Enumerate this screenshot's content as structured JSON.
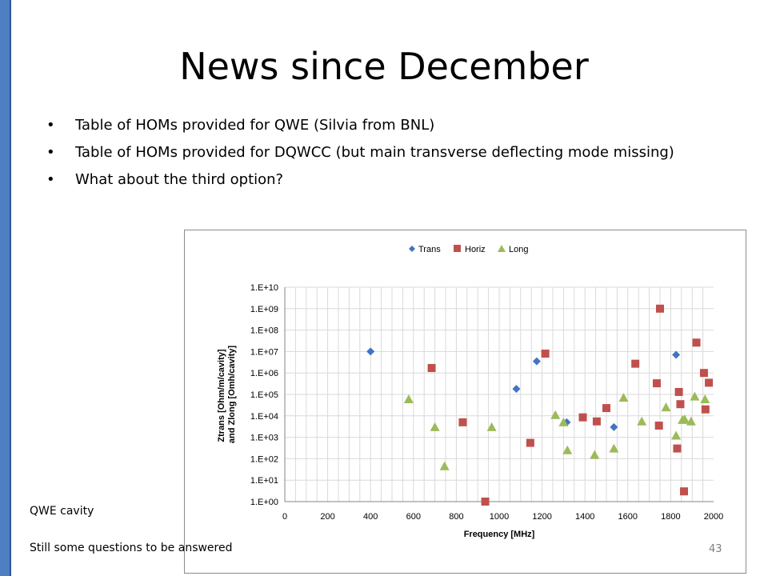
{
  "slide": {
    "title": "News since December",
    "bullets": [
      "Table of HOMs provided for QWE (Silvia from BNL)",
      "Table of HOMs provided for DQWCC (but main transverse deflecting mode missing)",
      "What about the third option?"
    ],
    "bullet_glyph": "•",
    "note_cavity": "QWE cavity",
    "note_questions": "Still some questions to be answered",
    "page_number": "43",
    "accent_color": "#4f7fc3"
  },
  "chart_data": {
    "type": "scatter",
    "title": "",
    "xlabel": "Frequency [MHz]",
    "ylabel_lines": [
      "Ztrans [Ohm/m/cavity]",
      "and Zlong [Omh/cavity]"
    ],
    "xlim": [
      0,
      2000
    ],
    "x_ticks": [
      0,
      200,
      400,
      600,
      800,
      1000,
      1200,
      1400,
      1600,
      1800,
      2000
    ],
    "y_scale": "log",
    "ylim": [
      1,
      10000000000
    ],
    "y_tick_exponents": [
      0,
      1,
      2,
      3,
      4,
      5,
      6,
      7,
      8,
      9,
      10
    ],
    "y_tick_labels": [
      "1.E+00",
      "1.E+01",
      "1.E+02",
      "1.E+03",
      "1.E+04",
      "1.E+05",
      "1.E+06",
      "1.E+07",
      "1.E+08",
      "1.E+09",
      "1.E+10"
    ],
    "grid": true,
    "legend_position": "top-center",
    "series": [
      {
        "name": "Trans",
        "marker": "diamond",
        "color": "#4472c4",
        "points": [
          [
            400,
            10000000.0
          ],
          [
            1080,
            180000.0
          ],
          [
            1175,
            3500000.0
          ],
          [
            1315,
            5000.0
          ],
          [
            1535,
            3000.0
          ],
          [
            1825,
            7000000.0
          ]
        ]
      },
      {
        "name": "Horiz",
        "marker": "square",
        "color": "#c0504d",
        "points": [
          [
            685,
            1700000.0
          ],
          [
            830,
            5000.0
          ],
          [
            935,
            1.0
          ],
          [
            1145,
            550.0
          ],
          [
            1215,
            8000000.0
          ],
          [
            1390,
            8500.0
          ],
          [
            1455,
            5500.0
          ],
          [
            1500,
            23000.0
          ],
          [
            1635,
            2700000.0
          ],
          [
            1735,
            330000.0
          ],
          [
            1745,
            3500.0
          ],
          [
            1750,
            1000000000.0
          ],
          [
            1830,
            300.0
          ],
          [
            1838,
            130000.0
          ],
          [
            1845,
            35000.0
          ],
          [
            1862,
            3.0
          ],
          [
            1920,
            26000000.0
          ],
          [
            1955,
            1000000.0
          ],
          [
            1962,
            20000.0
          ],
          [
            1978,
            350000.0
          ]
        ]
      },
      {
        "name": "Long",
        "marker": "triangle",
        "color": "#9bbb59",
        "points": [
          [
            578,
            60000.0
          ],
          [
            700,
            3000.0
          ],
          [
            745,
            45.0
          ],
          [
            965,
            3000.0
          ],
          [
            1262,
            11000.0
          ],
          [
            1300,
            5000.0
          ],
          [
            1318,
            250.0
          ],
          [
            1445,
            150.0
          ],
          [
            1535,
            300.0
          ],
          [
            1580,
            70000.0
          ],
          [
            1665,
            5500.0
          ],
          [
            1778,
            25000.0
          ],
          [
            1825,
            1200.0
          ],
          [
            1855,
            6500.0
          ],
          [
            1865,
            7000.0
          ],
          [
            1895,
            5500.0
          ],
          [
            1912,
            80000.0
          ],
          [
            1960,
            60000.0
          ]
        ]
      }
    ]
  }
}
